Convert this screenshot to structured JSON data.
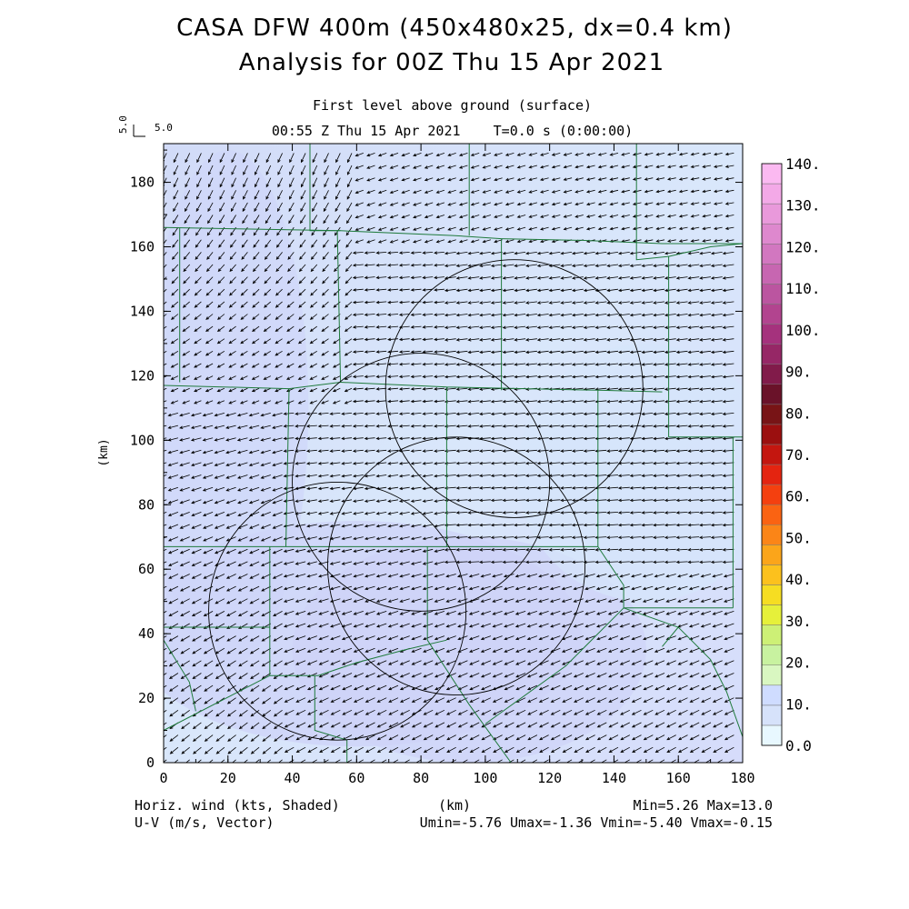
{
  "header": {
    "title": "CASA DFW 400m (450x480x25, dx=0.4 km)",
    "subtitle": "Analysis for 00Z Thu 15 Apr 2021",
    "level": "First level above ground (surface)",
    "time": "00:55 Z Thu 15 Apr 2021    T=0.0 s (0:00:00)",
    "ref_vector_left": "5.0",
    "ref_vector_right": "5.0"
  },
  "footer": {
    "left1": "Horiz. wind (kts, Shaded)",
    "left2": "U-V (m/s, Vector)",
    "center": "(km)",
    "right1": "Min=5.26 Max=13.0",
    "right2": "Umin=-5.76 Umax=-1.36 Vmin=-5.40 Vmax=-0.15"
  },
  "chart_data": {
    "type": "heatmap",
    "xlabel": "(km)",
    "ylabel": "(km)",
    "xlim": [
      0,
      180
    ],
    "ylim": [
      0,
      192
    ],
    "x_ticks": [
      0,
      20,
      40,
      60,
      80,
      100,
      120,
      140,
      160,
      180
    ],
    "y_ticks": [
      0,
      20,
      40,
      60,
      80,
      100,
      120,
      140,
      160,
      180
    ],
    "radar_range_rings": [
      {
        "center": [
          109,
          116
        ],
        "radius": 40
      },
      {
        "center": [
          80,
          87
        ],
        "radius": 40
      },
      {
        "center": [
          91,
          61
        ],
        "radius": 40
      },
      {
        "center": [
          54,
          47
        ],
        "radius": 40
      }
    ],
    "colorbar": {
      "labels": [
        "0.0",
        "10.",
        "20.",
        "30.",
        "40.",
        "50.",
        "60.",
        "70.",
        "80.",
        "90.",
        "100.",
        "110.",
        "120.",
        "130.",
        "140."
      ],
      "colors": [
        "#e8f8ff",
        "#d6e2fa",
        "#cfdcff",
        "#d9f7c1",
        "#c8f2a0",
        "#cdf076",
        "#e6f03a",
        "#f6dd22",
        "#fcc11d",
        "#fba51a",
        "#fb8517",
        "#fa6312",
        "#f4400f",
        "#e42410",
        "#c4160f",
        "#9b0f0f",
        "#781416",
        "#6a1229",
        "#811b4a",
        "#962766",
        "#a5327d",
        "#b2448f",
        "#bb55a0",
        "#c766b1",
        "#d277c0",
        "#de88ce",
        "#e999db",
        "#f3a9e7",
        "#fbb9f1"
      ]
    },
    "shading": {
      "field": "Horiz. wind (kts)",
      "min": 5.26,
      "max": 13.0
    },
    "vectors": {
      "field": "U-V (m/s)",
      "umin": -5.76,
      "umax": -1.36,
      "vmin": -5.4,
      "vmax": -0.15
    }
  }
}
